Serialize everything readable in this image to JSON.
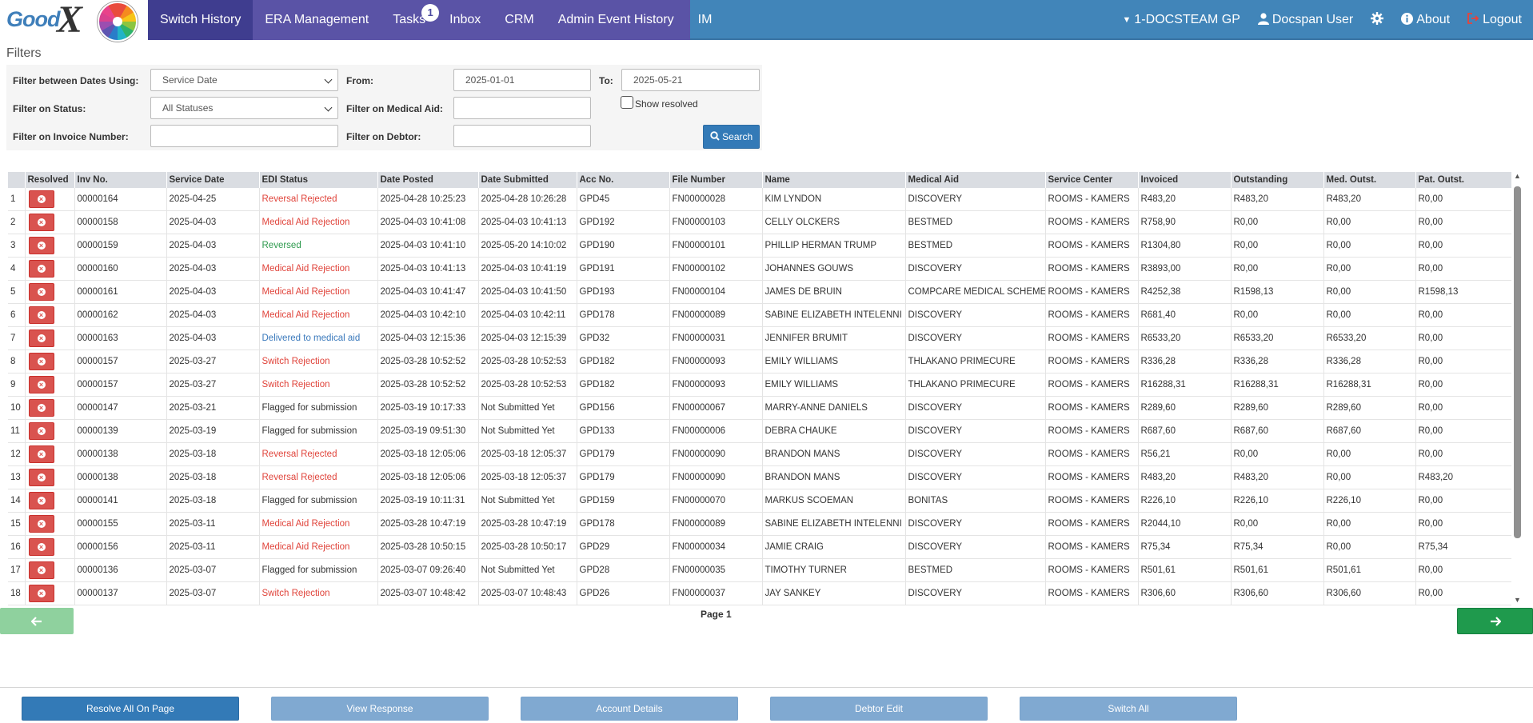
{
  "nav": {
    "logo_text": "Good",
    "logo_mark": "X",
    "tabs": [
      {
        "label": "Switch History",
        "active": true
      },
      {
        "label": "ERA Management"
      },
      {
        "label": "Tasks",
        "badge": "1"
      },
      {
        "label": "Inbox"
      },
      {
        "label": "CRM"
      },
      {
        "label": "Admin Event History"
      },
      {
        "label": "IM"
      }
    ],
    "practice": "1-DOCSTEAM GP",
    "user": "Docspan User",
    "about": "About",
    "logout": "Logout",
    "icons": {
      "practice": "caret-down-icon",
      "user": "user-icon",
      "settings": "gear-icon",
      "about": "info-circle-icon",
      "logout": "sign-out-icon"
    }
  },
  "filters": {
    "title": "Filters",
    "date_using_label": "Filter between Dates Using:",
    "date_using_value": "Service Date",
    "from_label": "From:",
    "from_value": "2025-01-01",
    "to_label": "To:",
    "to_value": "2025-05-21",
    "status_label": "Filter on Status:",
    "status_value": "All Statuses",
    "medical_aid_label": "Filter on Medical Aid:",
    "medical_aid_value": "",
    "show_resolved_label": "Show resolved",
    "show_resolved_checked": false,
    "invoice_label": "Filter on Invoice Number:",
    "invoice_value": "",
    "debtor_label": "Filter on Debtor:",
    "debtor_value": "",
    "search_label": "Search"
  },
  "table": {
    "columns": [
      "",
      "Resolved",
      "Inv No.",
      "Service Date",
      "EDI Status",
      "Date Posted",
      "Date Submitted",
      "Acc No.",
      "File Number",
      "Name",
      "Medical Aid",
      "Service Center",
      "Invoiced",
      "Outstanding",
      "Med. Outst.",
      "Pat. Outst."
    ],
    "status_colors": {
      "red": "#e0443b",
      "green": "#2e9a4e",
      "blue": "#3a79bc",
      "black": "#333333"
    },
    "rows": [
      {
        "n": "1",
        "inv": "00000164",
        "service_date": "2025-04-25",
        "status": "Reversal Rejected",
        "status_color": "red",
        "date_posted": "2025-04-28 10:25:23",
        "date_submitted": "2025-04-28 10:26:28",
        "acc": "GPD45",
        "file": "FN00000028",
        "name": "KIM LYNDON",
        "medical_aid": "DISCOVERY",
        "service_center": "ROOMS - KAMERS",
        "invoiced": "R483,20",
        "outstanding": "R483,20",
        "med_outst": "R483,20",
        "pat_outst": "R0,00"
      },
      {
        "n": "2",
        "inv": "00000158",
        "service_date": "2025-04-03",
        "status": "Medical Aid Rejection",
        "status_color": "red",
        "date_posted": "2025-04-03 10:41:08",
        "date_submitted": "2025-04-03 10:41:13",
        "acc": "GPD192",
        "file": "FN00000103",
        "name": "CELLY OLCKERS",
        "medical_aid": "BESTMED",
        "service_center": "ROOMS - KAMERS",
        "invoiced": "R758,90",
        "outstanding": "R0,00",
        "med_outst": "R0,00",
        "pat_outst": "R0,00"
      },
      {
        "n": "3",
        "inv": "00000159",
        "service_date": "2025-04-03",
        "status": "Reversed",
        "status_color": "green",
        "date_posted": "2025-04-03 10:41:10",
        "date_submitted": "2025-05-20 14:10:02",
        "acc": "GPD190",
        "file": "FN00000101",
        "name": "PHILLIP HERMAN TRUMP",
        "medical_aid": "BESTMED",
        "service_center": "ROOMS - KAMERS",
        "invoiced": "R1304,80",
        "outstanding": "R0,00",
        "med_outst": "R0,00",
        "pat_outst": "R0,00"
      },
      {
        "n": "4",
        "inv": "00000160",
        "service_date": "2025-04-03",
        "status": "Medical Aid Rejection",
        "status_color": "red",
        "date_posted": "2025-04-03 10:41:13",
        "date_submitted": "2025-04-03 10:41:19",
        "acc": "GPD191",
        "file": "FN00000102",
        "name": "JOHANNES GOUWS",
        "medical_aid": "DISCOVERY",
        "service_center": "ROOMS - KAMERS",
        "invoiced": "R3893,00",
        "outstanding": "R0,00",
        "med_outst": "R0,00",
        "pat_outst": "R0,00"
      },
      {
        "n": "5",
        "inv": "00000161",
        "service_date": "2025-04-03",
        "status": "Medical Aid Rejection",
        "status_color": "red",
        "date_posted": "2025-04-03 10:41:47",
        "date_submitted": "2025-04-03 10:41:50",
        "acc": "GPD193",
        "file": "FN00000104",
        "name": "JAMES DE BRUIN",
        "medical_aid": "COMPCARE MEDICAL SCHEME",
        "service_center": "ROOMS - KAMERS",
        "invoiced": "R4252,38",
        "outstanding": "R1598,13",
        "med_outst": "R0,00",
        "pat_outst": "R1598,13"
      },
      {
        "n": "6",
        "inv": "00000162",
        "service_date": "2025-04-03",
        "status": "Medical Aid Rejection",
        "status_color": "red",
        "date_posted": "2025-04-03 10:42:10",
        "date_submitted": "2025-04-03 10:42:11",
        "acc": "GPD178",
        "file": "FN00000089",
        "name": "SABINE ELIZABETH INTELENNI",
        "medical_aid": "DISCOVERY",
        "service_center": "ROOMS - KAMERS",
        "invoiced": "R681,40",
        "outstanding": "R0,00",
        "med_outst": "R0,00",
        "pat_outst": "R0,00"
      },
      {
        "n": "7",
        "inv": "00000163",
        "service_date": "2025-04-03",
        "status": "Delivered to medical aid",
        "status_color": "blue",
        "date_posted": "2025-04-03 12:15:36",
        "date_submitted": "2025-04-03 12:15:39",
        "acc": "GPD32",
        "file": "FN00000031",
        "name": "JENNIFER BRUMIT",
        "medical_aid": "DISCOVERY",
        "service_center": "ROOMS - KAMERS",
        "invoiced": "R6533,20",
        "outstanding": "R6533,20",
        "med_outst": "R6533,20",
        "pat_outst": "R0,00"
      },
      {
        "n": "8",
        "inv": "00000157",
        "service_date": "2025-03-27",
        "status": "Switch Rejection",
        "status_color": "red",
        "date_posted": "2025-03-28 10:52:52",
        "date_submitted": "2025-03-28 10:52:53",
        "acc": "GPD182",
        "file": "FN00000093",
        "name": "EMILY WILLIAMS",
        "medical_aid": "THLAKANO PRIMECURE",
        "service_center": "ROOMS - KAMERS",
        "invoiced": "R336,28",
        "outstanding": "R336,28",
        "med_outst": "R336,28",
        "pat_outst": "R0,00"
      },
      {
        "n": "9",
        "inv": "00000157",
        "service_date": "2025-03-27",
        "status": "Switch Rejection",
        "status_color": "red",
        "date_posted": "2025-03-28 10:52:52",
        "date_submitted": "2025-03-28 10:52:53",
        "acc": "GPD182",
        "file": "FN00000093",
        "name": "EMILY WILLIAMS",
        "medical_aid": "THLAKANO PRIMECURE",
        "service_center": "ROOMS - KAMERS",
        "invoiced": "R16288,31",
        "outstanding": "R16288,31",
        "med_outst": "R16288,31",
        "pat_outst": "R0,00"
      },
      {
        "n": "10",
        "inv": "00000147",
        "service_date": "2025-03-21",
        "status": "Flagged for submission",
        "status_color": "black",
        "date_posted": "2025-03-19 10:17:33",
        "date_submitted": "Not Submitted Yet",
        "acc": "GPD156",
        "file": "FN00000067",
        "name": "MARRY-ANNE DANIELS",
        "medical_aid": "DISCOVERY",
        "service_center": "ROOMS - KAMERS",
        "invoiced": "R289,60",
        "outstanding": "R289,60",
        "med_outst": "R289,60",
        "pat_outst": "R0,00"
      },
      {
        "n": "11",
        "inv": "00000139",
        "service_date": "2025-03-19",
        "status": "Flagged for submission",
        "status_color": "black",
        "date_posted": "2025-03-19 09:51:30",
        "date_submitted": "Not Submitted Yet",
        "acc": "GPD133",
        "file": "FN00000006",
        "name": "DEBRA CHAUKE",
        "medical_aid": "DISCOVERY",
        "service_center": "ROOMS - KAMERS",
        "invoiced": "R687,60",
        "outstanding": "R687,60",
        "med_outst": "R687,60",
        "pat_outst": "R0,00"
      },
      {
        "n": "12",
        "inv": "00000138",
        "service_date": "2025-03-18",
        "status": "Reversal Rejected",
        "status_color": "red",
        "date_posted": "2025-03-18 12:05:06",
        "date_submitted": "2025-03-18 12:05:37",
        "acc": "GPD179",
        "file": "FN00000090",
        "name": "BRANDON MANS",
        "medical_aid": "DISCOVERY",
        "service_center": "ROOMS - KAMERS",
        "invoiced": "R56,21",
        "outstanding": "R0,00",
        "med_outst": "R0,00",
        "pat_outst": "R0,00"
      },
      {
        "n": "13",
        "inv": "00000138",
        "service_date": "2025-03-18",
        "status": "Reversal Rejected",
        "status_color": "red",
        "date_posted": "2025-03-18 12:05:06",
        "date_submitted": "2025-03-18 12:05:37",
        "acc": "GPD179",
        "file": "FN00000090",
        "name": "BRANDON MANS",
        "medical_aid": "DISCOVERY",
        "service_center": "ROOMS - KAMERS",
        "invoiced": "R483,20",
        "outstanding": "R483,20",
        "med_outst": "R0,00",
        "pat_outst": "R483,20"
      },
      {
        "n": "14",
        "inv": "00000141",
        "service_date": "2025-03-18",
        "status": "Flagged for submission",
        "status_color": "black",
        "date_posted": "2025-03-19 10:11:31",
        "date_submitted": "Not Submitted Yet",
        "acc": "GPD159",
        "file": "FN00000070",
        "name": "MARKUS SCOEMAN",
        "medical_aid": "BONITAS",
        "service_center": "ROOMS - KAMERS",
        "invoiced": "R226,10",
        "outstanding": "R226,10",
        "med_outst": "R226,10",
        "pat_outst": "R0,00"
      },
      {
        "n": "15",
        "inv": "00000155",
        "service_date": "2025-03-11",
        "status": "Medical Aid Rejection",
        "status_color": "red",
        "date_posted": "2025-03-28 10:47:19",
        "date_submitted": "2025-03-28 10:47:19",
        "acc": "GPD178",
        "file": "FN00000089",
        "name": "SABINE ELIZABETH INTELENNI",
        "medical_aid": "DISCOVERY",
        "service_center": "ROOMS - KAMERS",
        "invoiced": "R2044,10",
        "outstanding": "R0,00",
        "med_outst": "R0,00",
        "pat_outst": "R0,00"
      },
      {
        "n": "16",
        "inv": "00000156",
        "service_date": "2025-03-11",
        "status": "Medical Aid Rejection",
        "status_color": "red",
        "date_posted": "2025-03-28 10:50:15",
        "date_submitted": "2025-03-28 10:50:17",
        "acc": "GPD29",
        "file": "FN00000034",
        "name": "JAMIE CRAIG",
        "medical_aid": "DISCOVERY",
        "service_center": "ROOMS - KAMERS",
        "invoiced": "R75,34",
        "outstanding": "R75,34",
        "med_outst": "R0,00",
        "pat_outst": "R75,34"
      },
      {
        "n": "17",
        "inv": "00000136",
        "service_date": "2025-03-07",
        "status": "Flagged for submission",
        "status_color": "black",
        "date_posted": "2025-03-07 09:26:40",
        "date_submitted": "Not Submitted Yet",
        "acc": "GPD28",
        "file": "FN00000035",
        "name": "TIMOTHY TURNER",
        "medical_aid": "BESTMED",
        "service_center": "ROOMS - KAMERS",
        "invoiced": "R501,61",
        "outstanding": "R501,61",
        "med_outst": "R501,61",
        "pat_outst": "R0,00"
      },
      {
        "n": "18",
        "inv": "00000137",
        "service_date": "2025-03-07",
        "status": "Switch Rejection",
        "status_color": "red",
        "date_posted": "2025-03-07 10:48:42",
        "date_submitted": "2025-03-07 10:48:43",
        "acc": "GPD26",
        "file": "FN00000037",
        "name": "JAY SANKEY",
        "medical_aid": "DISCOVERY",
        "service_center": "ROOMS - KAMERS",
        "invoiced": "R306,60",
        "outstanding": "R306,60",
        "med_outst": "R306,60",
        "pat_outst": "R0,00"
      }
    ]
  },
  "pager": {
    "page_label": "Page 1",
    "prev_icon": "arrow-left-icon",
    "next_icon": "arrow-right-icon"
  },
  "actions": {
    "resolve_all": "Resolve All On Page",
    "view_response": "View Response",
    "account_details": "Account Details",
    "debtor_edit": "Debtor Edit",
    "switch_all": "Switch All"
  }
}
